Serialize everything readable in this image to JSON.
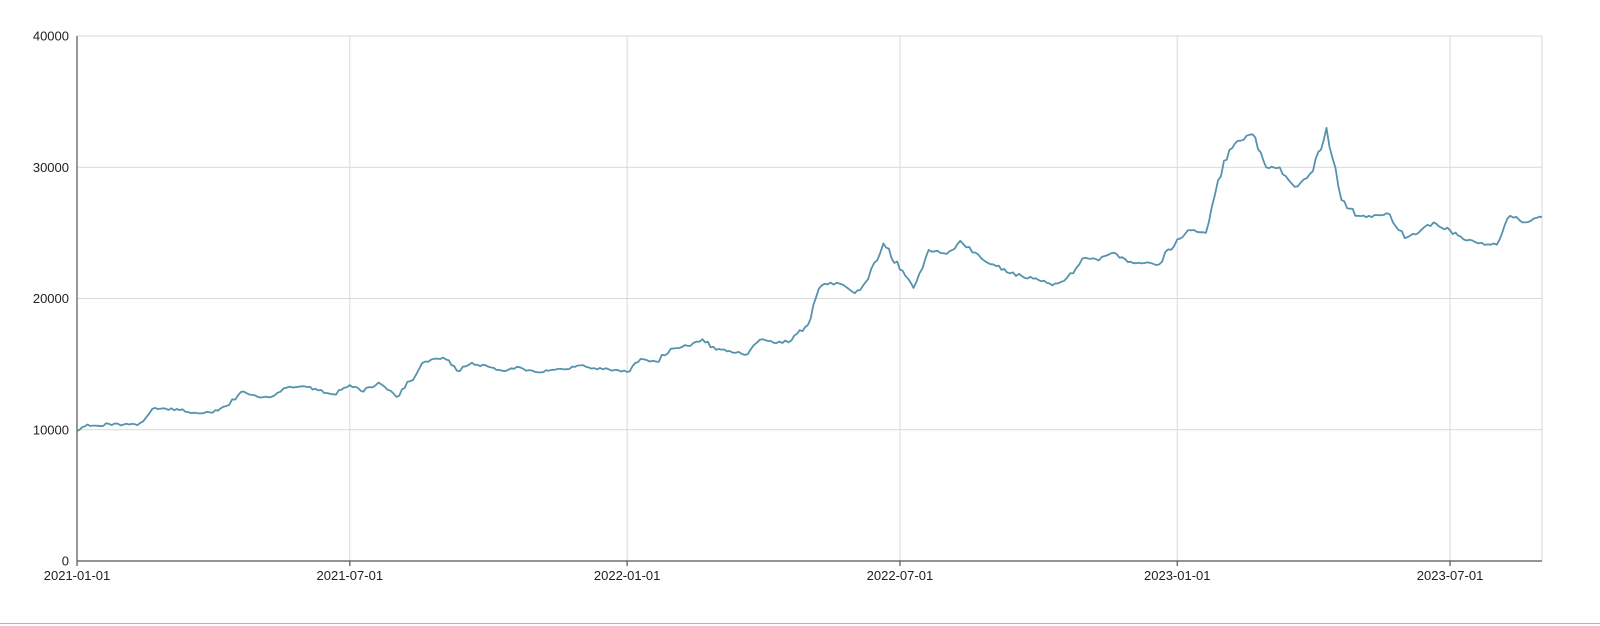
{
  "chart_data": {
    "type": "line",
    "title": "",
    "xlabel": "",
    "ylabel": "",
    "x_range": [
      "2021-01-01",
      "2023-08-31"
    ],
    "ylim": [
      0,
      40000
    ],
    "y_ticks": [
      0,
      10000,
      20000,
      30000,
      40000
    ],
    "x_ticks": [
      "2021-01-01",
      "2021-07-01",
      "2022-01-01",
      "2022-07-01",
      "2023-01-01",
      "2023-07-01"
    ],
    "grid": true,
    "legend": "none",
    "line_color": "#5593ad",
    "series": [
      {
        "x": [
          "2021-01-01",
          "2021-01-08",
          "2021-01-15",
          "2021-01-22",
          "2021-02-01",
          "2021-02-10",
          "2021-02-20",
          "2021-03-01",
          "2021-03-10",
          "2021-03-20",
          "2021-04-01",
          "2021-04-10",
          "2021-04-20",
          "2021-05-01",
          "2021-05-10",
          "2021-05-20",
          "2021-06-01",
          "2021-06-10",
          "2021-06-20",
          "2021-07-01",
          "2021-07-10",
          "2021-07-20",
          "2021-08-01",
          "2021-08-10",
          "2021-08-20",
          "2021-09-01",
          "2021-09-10",
          "2021-09-20",
          "2021-10-01",
          "2021-10-10",
          "2021-10-20",
          "2021-11-01",
          "2021-11-10",
          "2021-11-20",
          "2021-12-01",
          "2021-12-10",
          "2021-12-20",
          "2022-01-01",
          "2022-01-10",
          "2022-01-20",
          "2022-02-01",
          "2022-02-10",
          "2022-02-20",
          "2022-03-01",
          "2022-03-10",
          "2022-03-20",
          "2022-04-01",
          "2022-04-10",
          "2022-04-20",
          "2022-05-01",
          "2022-05-10",
          "2022-05-20",
          "2022-06-01",
          "2022-06-10",
          "2022-06-20",
          "2022-07-01",
          "2022-07-10",
          "2022-07-20",
          "2022-08-01",
          "2022-08-10",
          "2022-08-20",
          "2022-09-01",
          "2022-09-10",
          "2022-09-20",
          "2022-10-01",
          "2022-10-10",
          "2022-10-20",
          "2022-11-01",
          "2022-11-10",
          "2022-11-20",
          "2022-12-01",
          "2022-12-10",
          "2022-12-20",
          "2023-01-01",
          "2023-01-10",
          "2023-01-20",
          "2023-02-01",
          "2023-02-10",
          "2023-02-20",
          "2023-03-01",
          "2023-03-10",
          "2023-03-20",
          "2023-04-01",
          "2023-04-10",
          "2023-04-20",
          "2023-05-01",
          "2023-05-10",
          "2023-05-20",
          "2023-06-01",
          "2023-06-10",
          "2023-06-20",
          "2023-07-01",
          "2023-07-10",
          "2023-07-20",
          "2023-08-01",
          "2023-08-10",
          "2023-08-20",
          "2023-08-31"
        ],
        "values": [
          9900,
          10400,
          10300,
          10450,
          10400,
          10350,
          11600,
          11600,
          11500,
          11300,
          11300,
          11800,
          12900,
          12500,
          12500,
          13200,
          13300,
          13000,
          12700,
          13400,
          12900,
          13600,
          12500,
          13700,
          15200,
          15500,
          14500,
          15100,
          14800,
          14500,
          14800,
          14400,
          14500,
          14600,
          14900,
          14700,
          14600,
          14400,
          15400,
          15200,
          16200,
          16400,
          16900,
          16100,
          16000,
          15700,
          16900,
          16600,
          16800,
          18000,
          21000,
          21200,
          20400,
          21500,
          24200,
          22200,
          20800,
          23700,
          23400,
          24400,
          23500,
          22600,
          22000,
          21700,
          21400,
          21000,
          21600,
          23100,
          22900,
          23500,
          22800,
          22700,
          22600,
          24500,
          25200,
          25000,
          30500,
          32000,
          32500,
          30000,
          30000,
          28500,
          29700,
          33000,
          27500,
          26300,
          26200,
          26500,
          24600,
          25000,
          25800,
          25200,
          24500,
          24200,
          24100,
          26300,
          25800,
          26200
        ]
      }
    ]
  }
}
